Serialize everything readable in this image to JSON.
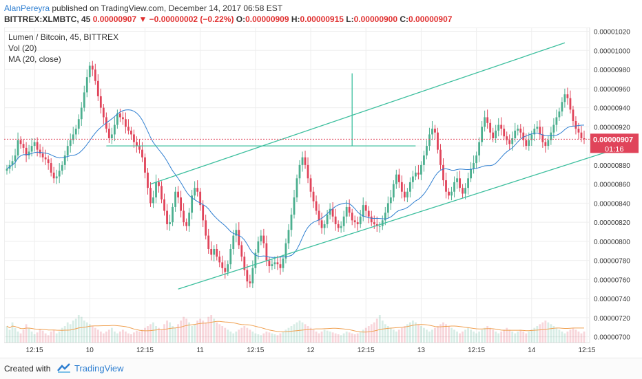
{
  "header": {
    "author": "AlanPereyra",
    "published_text": " published on TradingView.com, December 14, 2017 06:58 EST",
    "symbol": "BITTREX:XLMBTC, 45",
    "last": "0.00000907",
    "change_arrow": "▼",
    "change": "−0.00000002 (−0.22%)",
    "o_label": "O:",
    "o_value": "0.00000909",
    "h_label": "H:",
    "h_value": "0.00000915",
    "l_label": "L:",
    "l_value": "0.00000900",
    "c_label": "C:",
    "c_value": "0.00000907"
  },
  "legend": {
    "title": "Lumen / Bitcoin, 45, BITTREX",
    "vol": "Vol (20)",
    "ma": "MA (20, close)"
  },
  "price_tag": {
    "value": "0.00000907",
    "countdown": "01:16"
  },
  "colors": {
    "up": "#4caf8f",
    "down": "#e0445a",
    "ma": "#2f7fd1",
    "vol_ma": "#f0a050",
    "channel": "#3dbf9e",
    "grid": "#eeeeee"
  },
  "chart_data": {
    "type": "candlestick",
    "title": "Lumen / Bitcoin, 45, BITTREX",
    "ylim": [
      6.94e-06,
      1.024e-05
    ],
    "y_ticks": [
      "0.00000700",
      "0.00000720",
      "0.00000740",
      "0.00000760",
      "0.00000780",
      "0.00000800",
      "0.00000820",
      "0.00000840",
      "0.00000860",
      "0.00000880",
      "0.00000900",
      "0.00000920",
      "0.00000940",
      "0.00000960",
      "0.00000980",
      "0.00001000",
      "0.00001020"
    ],
    "x_ticks": [
      "12:15",
      "10",
      "12:15",
      "11",
      "12:15",
      "12",
      "12:15",
      "13",
      "12:15",
      "14",
      "12:15"
    ],
    "x_tick_bars": [
      10,
      30,
      50,
      70,
      90,
      110,
      130,
      150,
      170,
      190,
      210
    ],
    "closes": [
      876,
      880,
      884,
      890,
      906,
      902,
      898,
      890,
      894,
      900,
      904,
      896,
      892,
      888,
      886,
      882,
      872,
      866,
      868,
      874,
      880,
      890,
      900,
      906,
      912,
      918,
      928,
      940,
      956,
      972,
      984,
      980,
      968,
      952,
      940,
      930,
      918,
      908,
      912,
      922,
      934,
      930,
      928,
      920,
      916,
      912,
      904,
      900,
      896,
      888,
      872,
      856,
      840,
      846,
      862,
      858,
      844,
      832,
      818,
      820,
      836,
      852,
      846,
      832,
      820,
      816,
      830,
      848,
      856,
      852,
      838,
      822,
      806,
      792,
      786,
      792,
      784,
      778,
      772,
      768,
      776,
      792,
      806,
      812,
      796,
      784,
      770,
      758,
      756,
      772,
      788,
      800,
      806,
      798,
      780,
      774,
      776,
      778,
      776,
      772,
      782,
      798,
      812,
      828,
      846,
      866,
      880,
      888,
      880,
      866,
      852,
      842,
      832,
      822,
      814,
      818,
      828,
      834,
      826,
      818,
      814,
      816,
      826,
      836,
      830,
      822,
      820,
      818,
      826,
      838,
      832,
      826,
      820,
      818,
      816,
      816,
      822,
      830,
      840,
      846,
      860,
      870,
      862,
      852,
      846,
      852,
      862,
      868,
      872,
      870,
      880,
      890,
      900,
      912,
      918,
      914,
      896,
      880,
      864,
      852,
      848,
      852,
      862,
      866,
      856,
      850,
      856,
      866,
      876,
      882,
      890,
      904,
      920,
      930,
      924,
      914,
      908,
      916,
      922,
      918,
      910,
      906,
      902,
      908,
      916,
      918,
      914,
      906,
      900,
      906,
      912,
      918,
      920,
      912,
      904,
      900,
      906,
      914,
      922,
      930,
      936,
      946,
      954,
      950,
      938,
      926,
      918,
      914,
      908,
      907
    ],
    "volumes": [
      18,
      14,
      22,
      16,
      12,
      10,
      14,
      20,
      16,
      12,
      9,
      11,
      15,
      13,
      10,
      8,
      12,
      14,
      10,
      12,
      16,
      18,
      22,
      20,
      24,
      26,
      30,
      28,
      24,
      22,
      20,
      18,
      16,
      14,
      12,
      10,
      12,
      14,
      16,
      12,
      10,
      12,
      14,
      12,
      10,
      9,
      11,
      13,
      12,
      14,
      16,
      18,
      20,
      22,
      18,
      16,
      14,
      20,
      24,
      22,
      18,
      16,
      20,
      24,
      28,
      26,
      22,
      18,
      20,
      24,
      26,
      24,
      22,
      28,
      30,
      26,
      22,
      20,
      18,
      16,
      14,
      12,
      10,
      12,
      14,
      16,
      18,
      16,
      14,
      12,
      10,
      9,
      8,
      10,
      12,
      11,
      10,
      9,
      8,
      10,
      12,
      14,
      16,
      18,
      20,
      22,
      24,
      22,
      20,
      18,
      16,
      14,
      12,
      10,
      12,
      14,
      13,
      12,
      11,
      10,
      9,
      8,
      10,
      12,
      11,
      10,
      9,
      10,
      12,
      14,
      16,
      18,
      20,
      22,
      26,
      30,
      24,
      20,
      18,
      16,
      14,
      12,
      14,
      16,
      18,
      20,
      22,
      24,
      22,
      20,
      18,
      16,
      14,
      12,
      14,
      16,
      18,
      20,
      22,
      20,
      18,
      16,
      14,
      12,
      10,
      12,
      14,
      16,
      14,
      12,
      10,
      12,
      14,
      16,
      18,
      16,
      14,
      12,
      10,
      12,
      14,
      16,
      14,
      12,
      10,
      12,
      14,
      12,
      10,
      12,
      14,
      16,
      18,
      20,
      22,
      24,
      22,
      20,
      18,
      16,
      14,
      12,
      10,
      12,
      14,
      16,
      14,
      12,
      10,
      12
    ],
    "channel_upper": {
      "from": [
        52,
        860
      ],
      "to": [
        202,
        1008
      ]
    },
    "channel_lower": {
      "from": [
        62,
        750
      ],
      "to": [
        222,
        898
      ]
    },
    "horizontal_level": {
      "from_bar": 36,
      "to_bar": 148,
      "price": 900
    },
    "vertical_marker": {
      "bar": 125,
      "from_price": 900,
      "to_price": 976
    },
    "current_price": 907
  }
}
